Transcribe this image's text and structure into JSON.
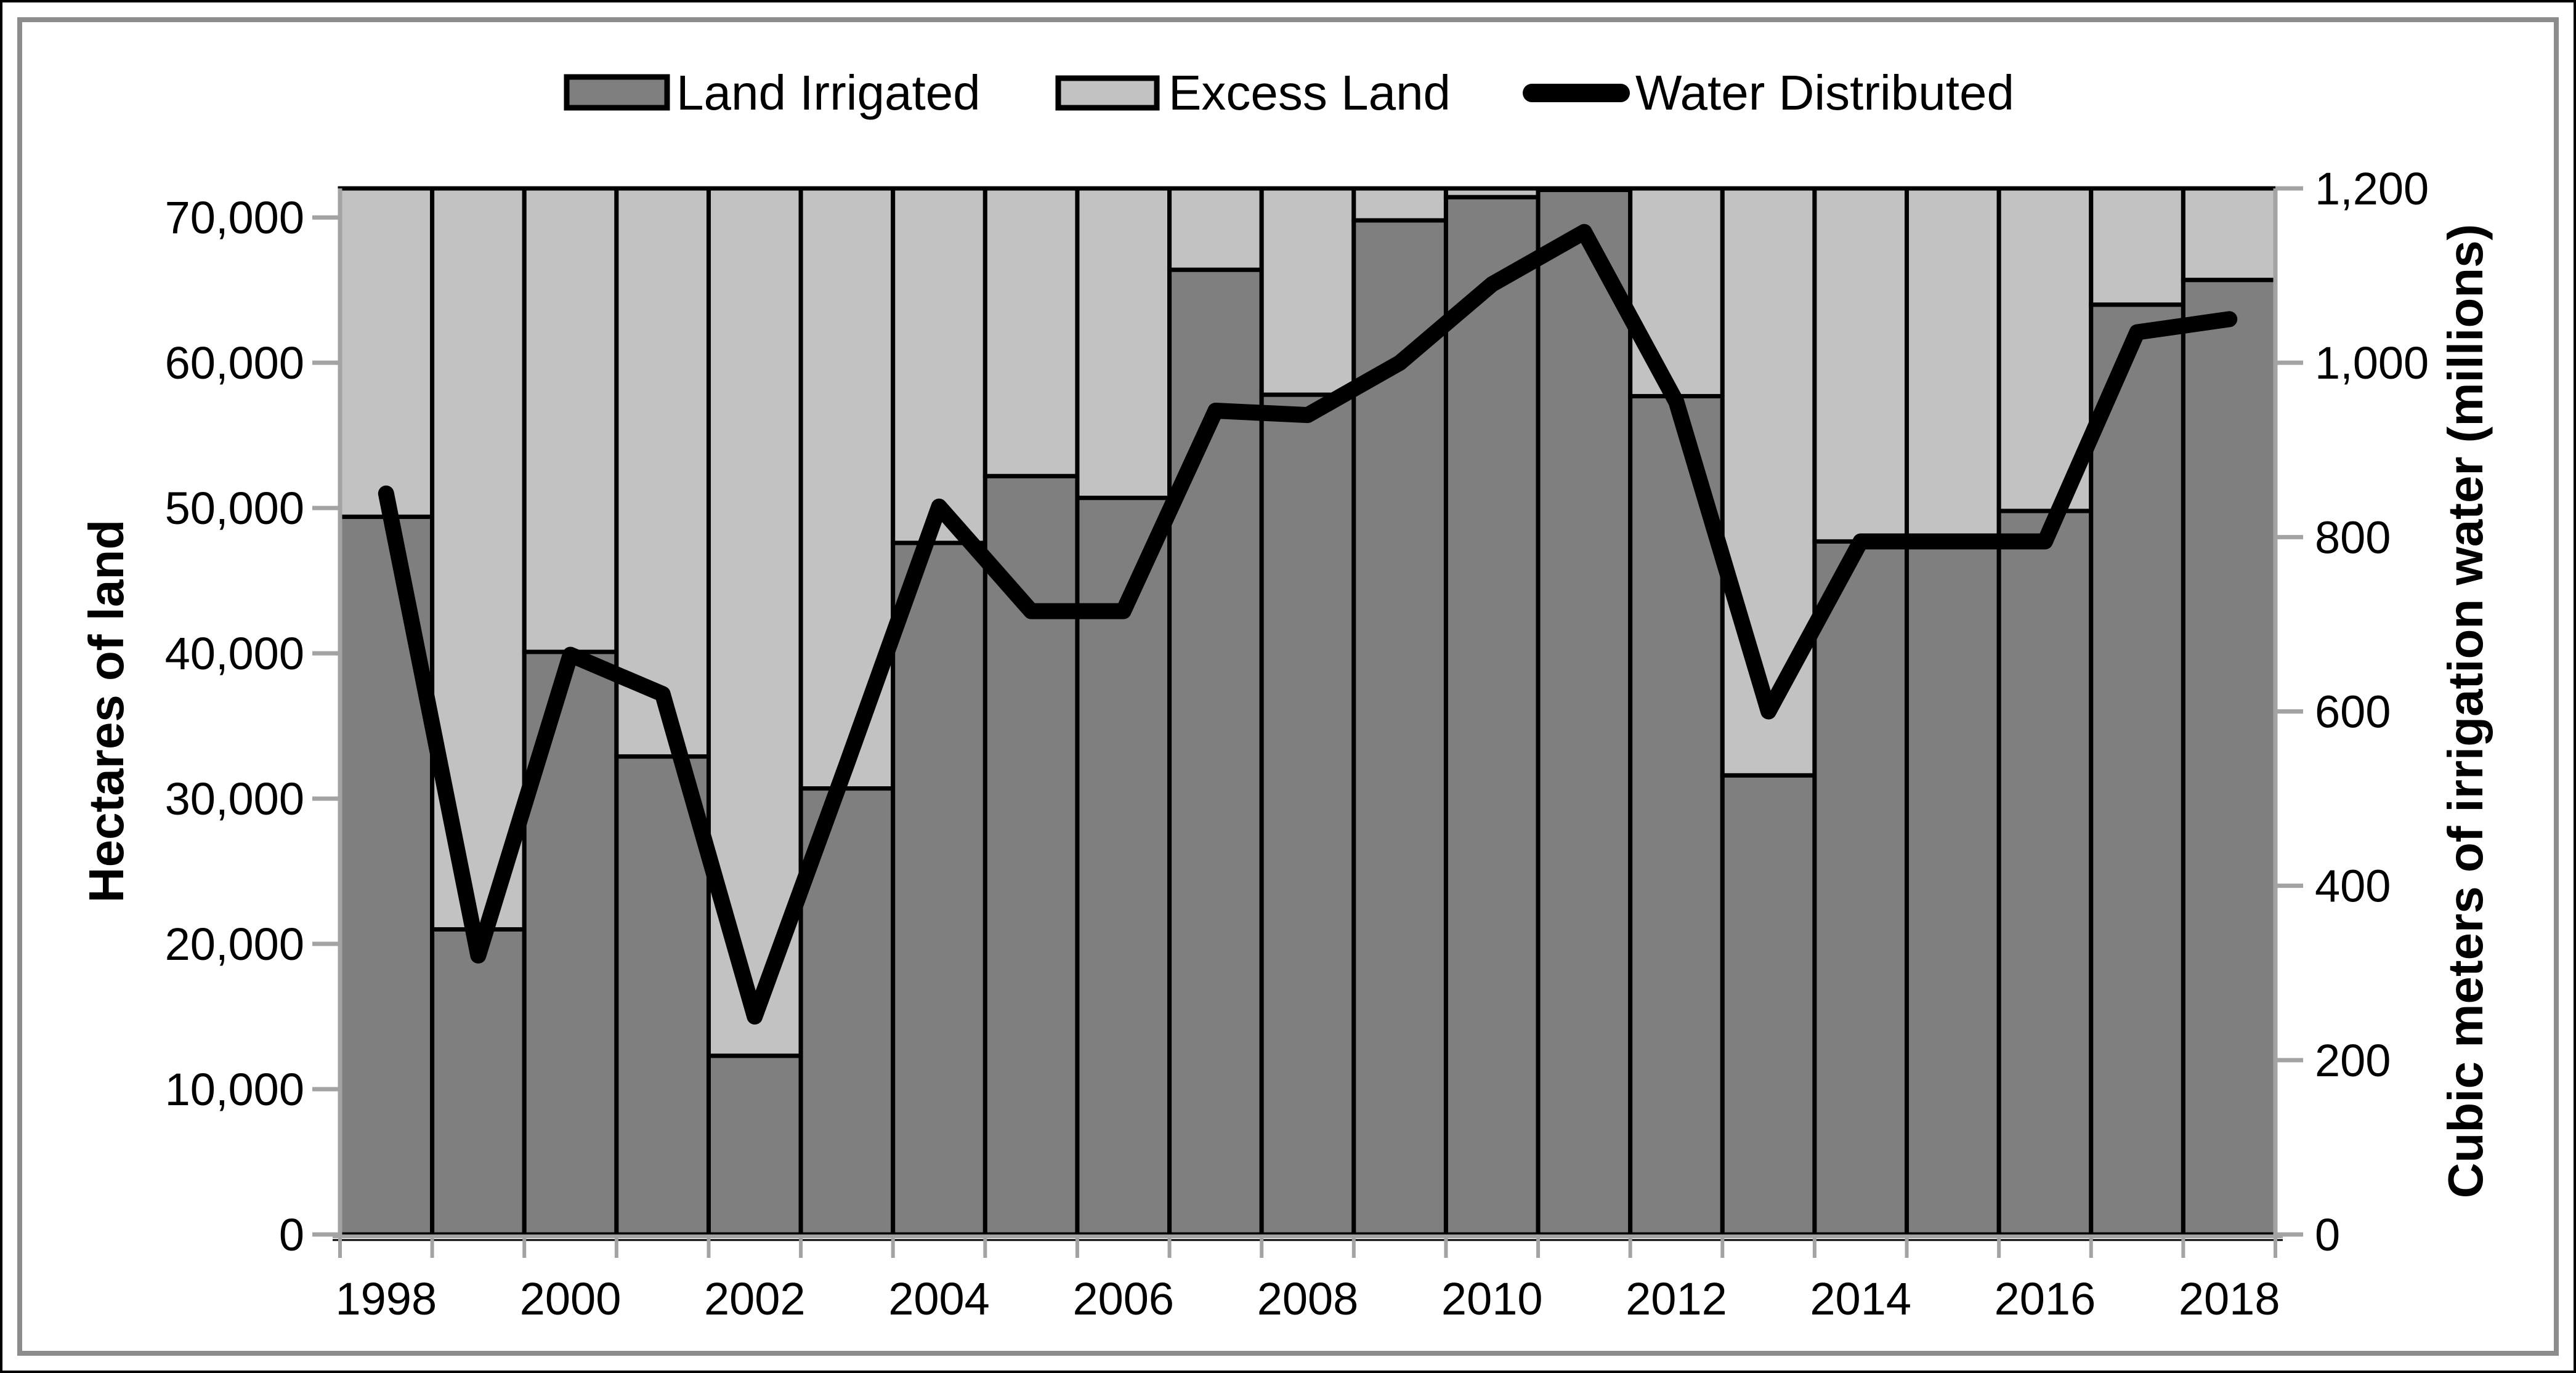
{
  "figure": {
    "background": "#FFFFFF",
    "outer_border_color": "#000000",
    "inner_border_color": "#8C8C8C"
  },
  "legend": {
    "position": "top-center",
    "items": [
      {
        "label": "Land Irrigated",
        "marker": "filled-box",
        "color": "#7F7F7F"
      },
      {
        "label": "Excess Land",
        "marker": "filled-box",
        "color": "#C2C2C2"
      },
      {
        "label": "Water Distributed",
        "marker": "thick-line",
        "color": "#000000"
      }
    ]
  },
  "chart_data": {
    "type": "bar",
    "subtype": "stacked-bars-with-secondary-axis-line",
    "title": "",
    "categories": [
      1998,
      1999,
      2000,
      2001,
      2002,
      2003,
      2004,
      2005,
      2006,
      2007,
      2008,
      2009,
      2010,
      2011,
      2012,
      2013,
      2014,
      2015,
      2016,
      2017,
      2018
    ],
    "series": [
      {
        "name": "Land Irrigated",
        "type": "bar",
        "stack": "land",
        "axis": "left",
        "color": "#7F7F7F",
        "values": [
          49400,
          21000,
          40100,
          32900,
          12300,
          30700,
          47600,
          52200,
          50700,
          66400,
          57800,
          69800,
          71400,
          71900,
          57700,
          31600,
          47700,
          47800,
          49800,
          64000,
          65700
        ]
      },
      {
        "name": "Excess Land",
        "type": "bar",
        "stack": "land",
        "axis": "left",
        "color": "#C2C2C2",
        "values": [
          22600,
          51000,
          31900,
          39100,
          59700,
          41300,
          24400,
          19800,
          21300,
          5600,
          14200,
          2200,
          600,
          100,
          14300,
          40400,
          24300,
          24200,
          22200,
          8000,
          6300
        ]
      },
      {
        "name": "Water Distributed",
        "type": "line",
        "axis": "right",
        "color": "#000000",
        "values": [
          850,
          320,
          665,
          620,
          250,
          540,
          835,
          715,
          715,
          945,
          940,
          1000,
          1090,
          1150,
          955,
          600,
          795,
          795,
          795,
          1035,
          1050
        ]
      }
    ],
    "stack_total": 72000,
    "left_axis": {
      "title": "Hectares of land",
      "min": 0,
      "max": 72000,
      "tick_step": 10000,
      "tick_labels": [
        "0",
        "10,000",
        "20,000",
        "30,000",
        "40,000",
        "50,000",
        "60,000",
        "70,000"
      ]
    },
    "right_axis": {
      "title": "Cubic meters of irrigation water (millions)",
      "min": 0,
      "max": 1200,
      "tick_step": 200,
      "tick_labels": [
        "0",
        "200",
        "400",
        "600",
        "800",
        "1,000",
        "1,200"
      ]
    },
    "x_axis": {
      "tick_label_years": [
        "1998",
        "2000",
        "2002",
        "2004",
        "2006",
        "2008",
        "2010",
        "2012",
        "2014",
        "2016",
        "2018"
      ]
    },
    "grid": false,
    "legend_position": "top-center",
    "axis_color": "#A3A3A3",
    "bar_border_color": "#000000",
    "line_width": 26
  }
}
